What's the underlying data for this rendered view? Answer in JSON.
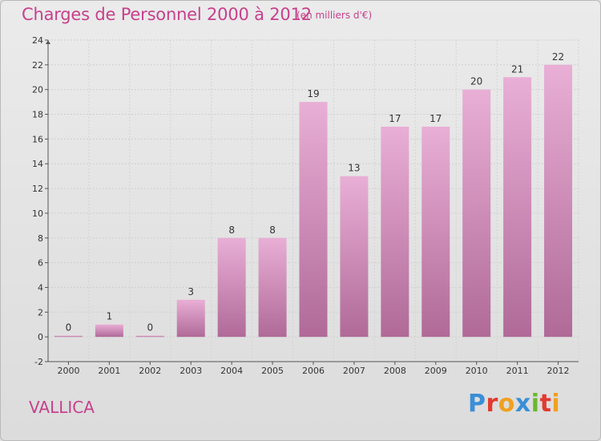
{
  "title": "Charges de Personnel 2000 à 2012",
  "subtitle": "(en milliers d'€)",
  "commune": "VALLICA",
  "logo": {
    "text": "Proxiti",
    "letters": [
      {
        "ch": "P",
        "color": "#3a8fd8"
      },
      {
        "ch": "r",
        "color": "#e23a2e"
      },
      {
        "ch": "o",
        "color": "#f0a020"
      },
      {
        "ch": "x",
        "color": "#3a8fd8"
      },
      {
        "ch": "i",
        "color": "#6bb82e"
      },
      {
        "ch": "t",
        "color": "#e23a2e"
      },
      {
        "ch": "i",
        "color": "#f0a020"
      }
    ]
  },
  "colors": {
    "bar_top": "#e9afd6",
    "bar_bottom": "#b06a98",
    "text": "#c8408c"
  },
  "chart_data": {
    "type": "bar",
    "categories": [
      "2000",
      "2001",
      "2002",
      "2003",
      "2004",
      "2005",
      "2006",
      "2007",
      "2008",
      "2009",
      "2010",
      "2011",
      "2012"
    ],
    "values": [
      0,
      1,
      0,
      3,
      8,
      8,
      19,
      13,
      17,
      17,
      20,
      21,
      22
    ],
    "value_labels": [
      "0",
      "1",
      "0",
      "3",
      "8",
      "8",
      "19",
      "13",
      "17",
      "17",
      "20",
      "21",
      "22"
    ],
    "ylim": [
      -2,
      24
    ],
    "yticks": [
      -2,
      0,
      2,
      4,
      6,
      8,
      10,
      12,
      14,
      16,
      18,
      20,
      22,
      24
    ],
    "grid": true,
    "xlabel": "",
    "ylabel": ""
  }
}
